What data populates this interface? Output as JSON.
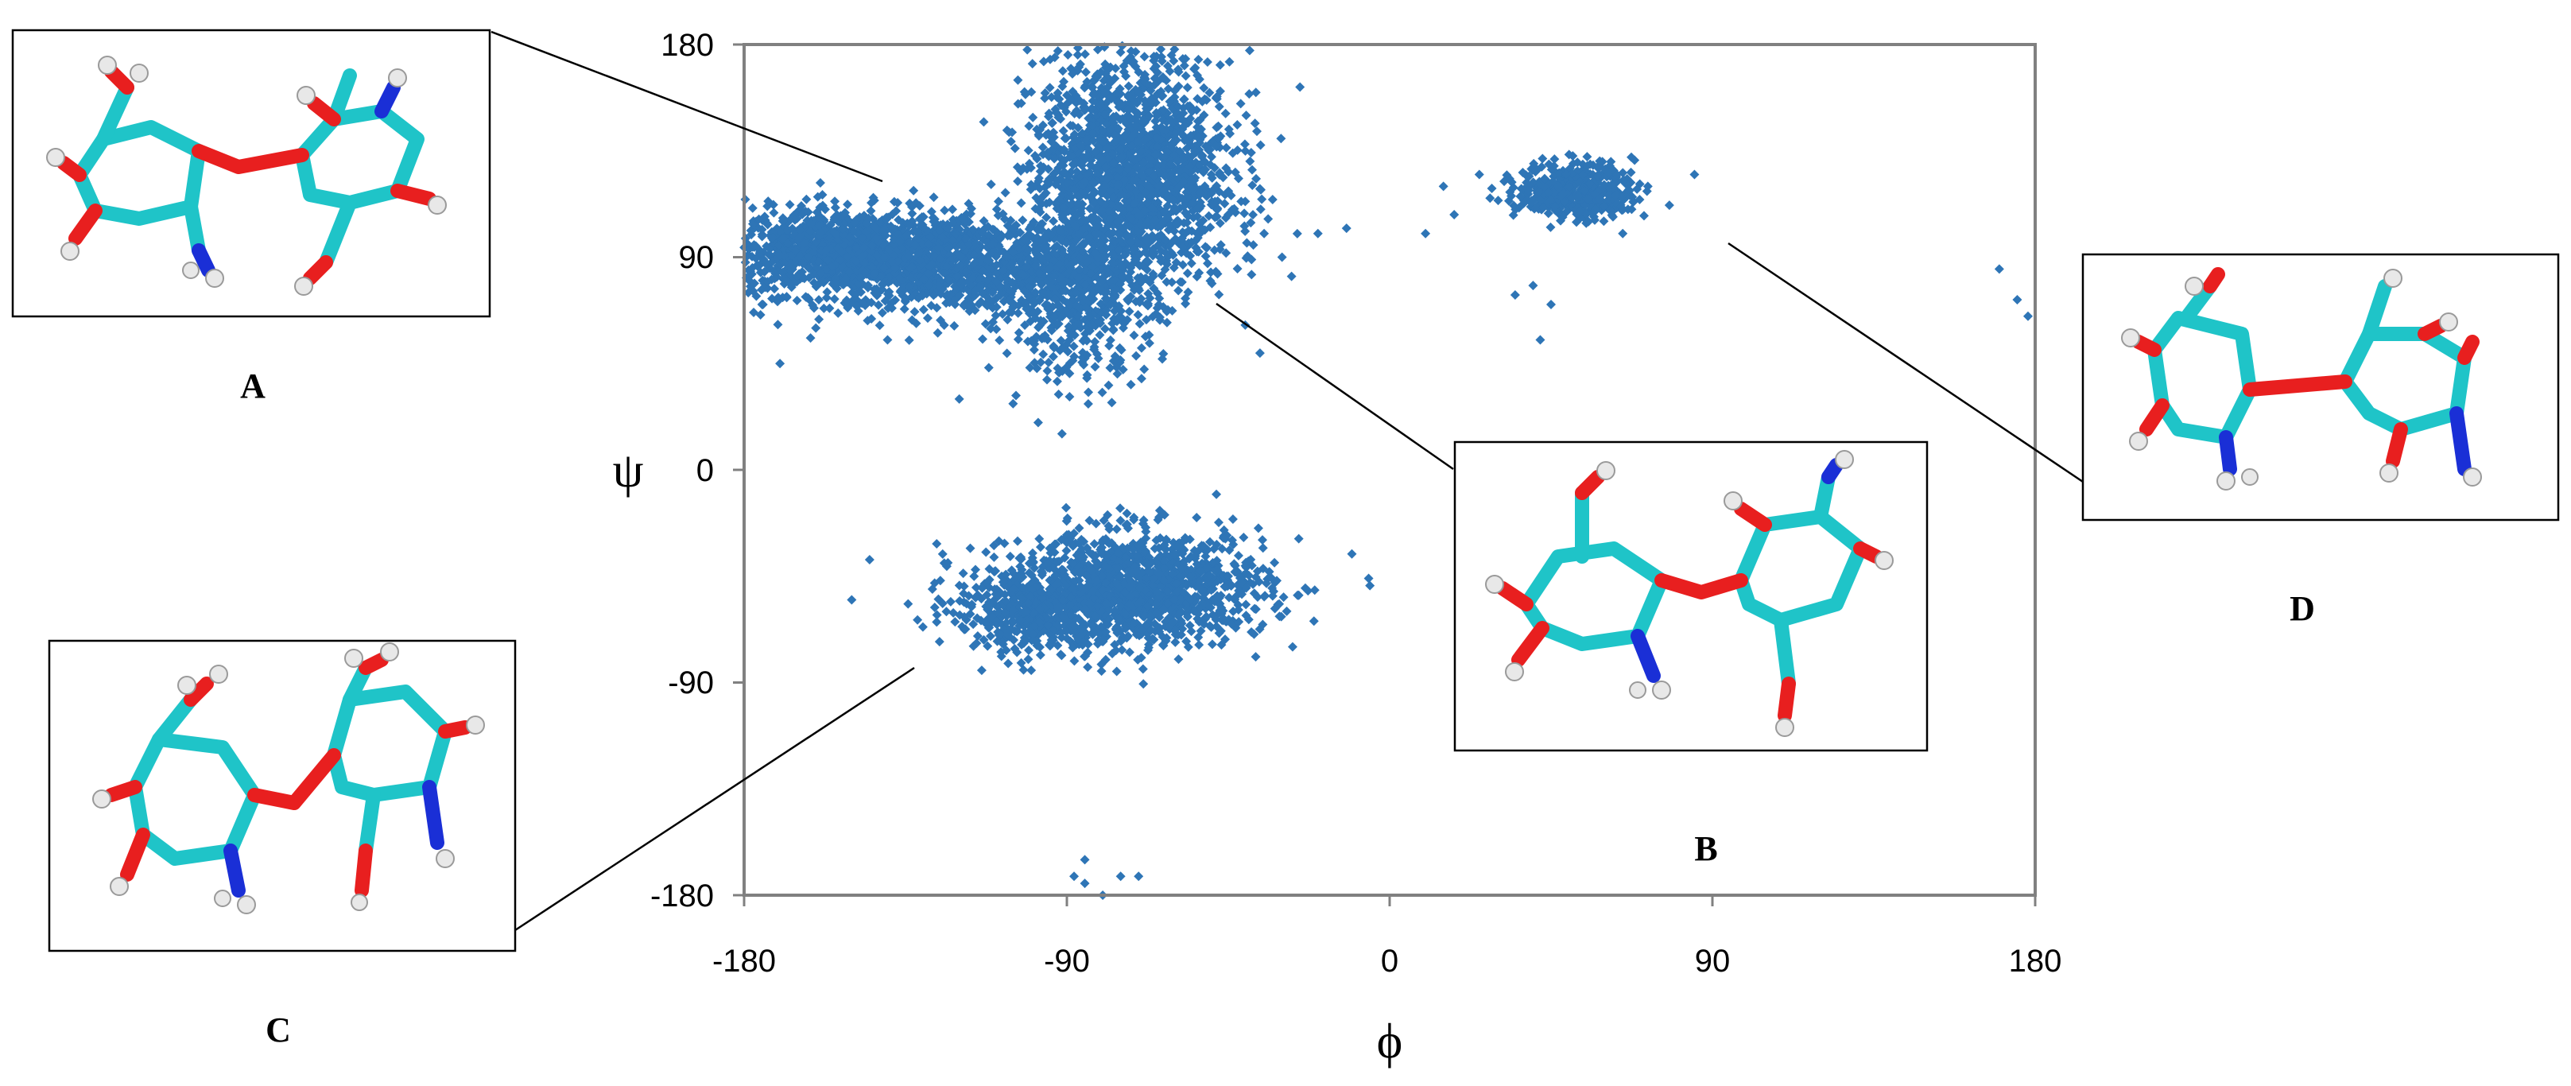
{
  "chart_data": {
    "type": "scatter",
    "title": "",
    "xlabel": "ϕ",
    "ylabel": "ψ",
    "xlim": [
      -180,
      180
    ],
    "ylim": [
      -180,
      180
    ],
    "xticks": [
      "-180",
      "-90",
      "0",
      "90",
      "180"
    ],
    "yticks": [
      "180",
      "90",
      "0",
      "-90",
      "-180"
    ],
    "grid": false,
    "marker_color": "#2e75b6",
    "clusters": [
      {
        "center": [
          -150,
          92
        ],
        "spread": [
          20,
          9
        ],
        "count": 1400
      },
      {
        "center": [
          -115,
          85
        ],
        "spread": [
          18,
          10
        ],
        "count": 700
      },
      {
        "center": [
          -72,
          125
        ],
        "spread": [
          14,
          25
        ],
        "count": 1800
      },
      {
        "center": [
          -88,
          75
        ],
        "spread": [
          10,
          18
        ],
        "count": 500
      },
      {
        "center": [
          -70,
          -50
        ],
        "spread": [
          18,
          12
        ],
        "count": 1200
      },
      {
        "center": [
          -98,
          -60
        ],
        "spread": [
          12,
          9
        ],
        "count": 500
      },
      {
        "center": [
          52,
          118
        ],
        "spread": [
          8,
          6
        ],
        "count": 450
      }
    ],
    "outliers": [
      [
        -160,
        60
      ],
      [
        -175,
        70
      ],
      [
        -170,
        45
      ],
      [
        -120,
        30
      ],
      [
        -105,
        28
      ],
      [
        -98,
        20
      ],
      [
        -132,
        62
      ],
      [
        -140,
        55
      ],
      [
        -45,
        108
      ],
      [
        -40,
        150
      ],
      [
        -35,
        100
      ],
      [
        -30,
        90
      ],
      [
        -25,
        162
      ],
      [
        -20,
        100
      ],
      [
        -50,
        80
      ],
      [
        -65,
        175
      ],
      [
        -60,
        178
      ],
      [
        40,
        78
      ],
      [
        45,
        70
      ],
      [
        42,
        55
      ],
      [
        35,
        74
      ],
      [
        18,
        108
      ],
      [
        15,
        120
      ],
      [
        25,
        125
      ],
      [
        72,
        120
      ],
      [
        85,
        125
      ],
      [
        78,
        112
      ],
      [
        65,
        100
      ],
      [
        28,
        115
      ],
      [
        10,
        100
      ],
      [
        170,
        85
      ],
      [
        175,
        72
      ],
      [
        178,
        65
      ],
      [
        -150,
        -55
      ],
      [
        -145,
        -38
      ],
      [
        -45,
        -45
      ],
      [
        -40,
        -50
      ],
      [
        -85,
        -165
      ],
      [
        -85,
        -175
      ],
      [
        -80,
        -180
      ],
      [
        -75,
        -172
      ],
      [
        -70,
        -172
      ],
      [
        -88,
        -172
      ]
    ],
    "panel_labels": [
      "A",
      "B",
      "C",
      "D"
    ]
  }
}
